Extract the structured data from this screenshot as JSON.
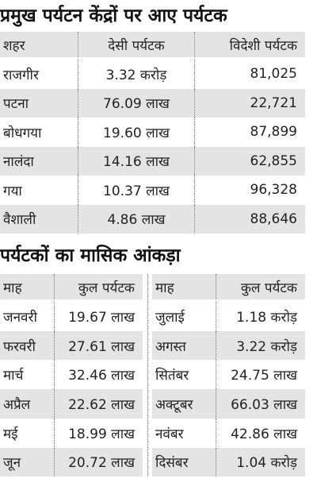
{
  "tourist_centers": {
    "title": "प्रमुख पर्यटन केंद्रों पर आए पर्यटक",
    "header": [
      "शहर",
      "देसी पर्यटक",
      "विदेशी पर्यटक"
    ],
    "rows": [
      [
        "राजगीर",
        "3.32 करोड़",
        "81,025"
      ],
      [
        "पटना",
        "76.09 लाख",
        "22,721"
      ],
      [
        "बोधगया",
        "19.60 लाख",
        "87,899"
      ],
      [
        "नालंदा",
        "14.16 लाख",
        "62,855"
      ],
      [
        "गया",
        "10.37 लाख",
        "96,328"
      ],
      [
        "वैशाली",
        "4.86 लाख",
        "88,646"
      ]
    ]
  },
  "monthly": {
    "title": "पर्यटकों का मासिक आंकड़ा",
    "header": [
      "माह",
      "कुल पर्यटक",
      "माह",
      "कुल पर्यटक"
    ],
    "rows": [
      [
        "जनवरी",
        "19.67 लाख",
        "जुलाई",
        "1.18 करोड़"
      ],
      [
        "फरवरी",
        "27.61 लाख",
        "अगस्त",
        "3.22 करोड़"
      ],
      [
        "मार्च",
        "32.46 लाख",
        "सितंबर",
        "24.75 लाख"
      ],
      [
        "अप्रैल",
        "22.62 लाख",
        "अक्टूबर",
        "66.03 लाख"
      ],
      [
        "मई",
        "18.99 लाख",
        "नवंबर",
        "42.86 लाख"
      ],
      [
        "जून",
        "20.72 लाख",
        "दिसंबर",
        "1.04 करोड़"
      ]
    ]
  }
}
